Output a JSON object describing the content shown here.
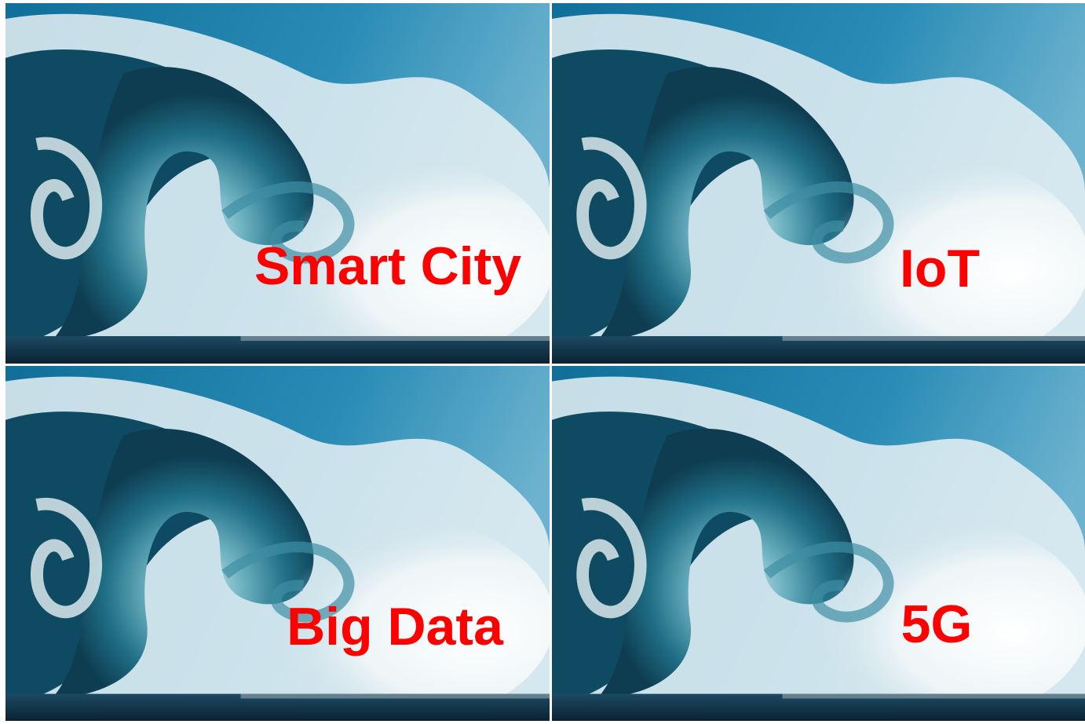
{
  "tiles": [
    {
      "label": "Smart City"
    },
    {
      "label": "IoT"
    },
    {
      "label": "Big Data"
    },
    {
      "label": "5G"
    }
  ]
}
